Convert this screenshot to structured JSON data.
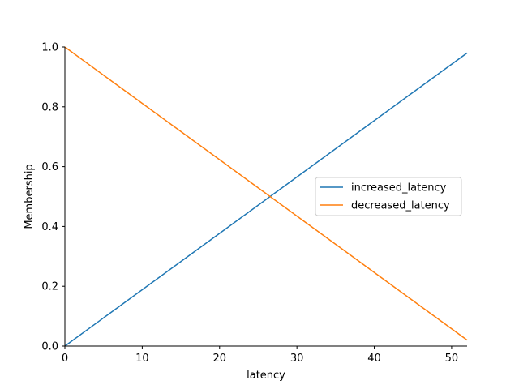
{
  "chart_data": {
    "type": "line",
    "title": "",
    "xlabel": "latency",
    "ylabel": "Membership",
    "xlim": [
      0,
      52
    ],
    "ylim": [
      0,
      1
    ],
    "xticks": [
      0,
      10,
      20,
      30,
      40,
      50
    ],
    "xtick_labels": [
      "0",
      "10",
      "20",
      "30",
      "40",
      "50"
    ],
    "yticks": [
      0,
      0.2,
      0.4,
      0.6,
      0.8,
      1.0
    ],
    "ytick_labels": [
      "0.0",
      "0.2",
      "0.4",
      "0.6",
      "0.8",
      "1.0"
    ],
    "grid": false,
    "legend_position": "center-right",
    "series": [
      {
        "name": "increased_latency",
        "color": "#1f77b4",
        "x": [
          0,
          52
        ],
        "y": [
          0,
          0.98
        ]
      },
      {
        "name": "decreased_latency",
        "color": "#ff7f0e",
        "x": [
          0,
          52
        ],
        "y": [
          1.0,
          0.02
        ]
      }
    ]
  }
}
